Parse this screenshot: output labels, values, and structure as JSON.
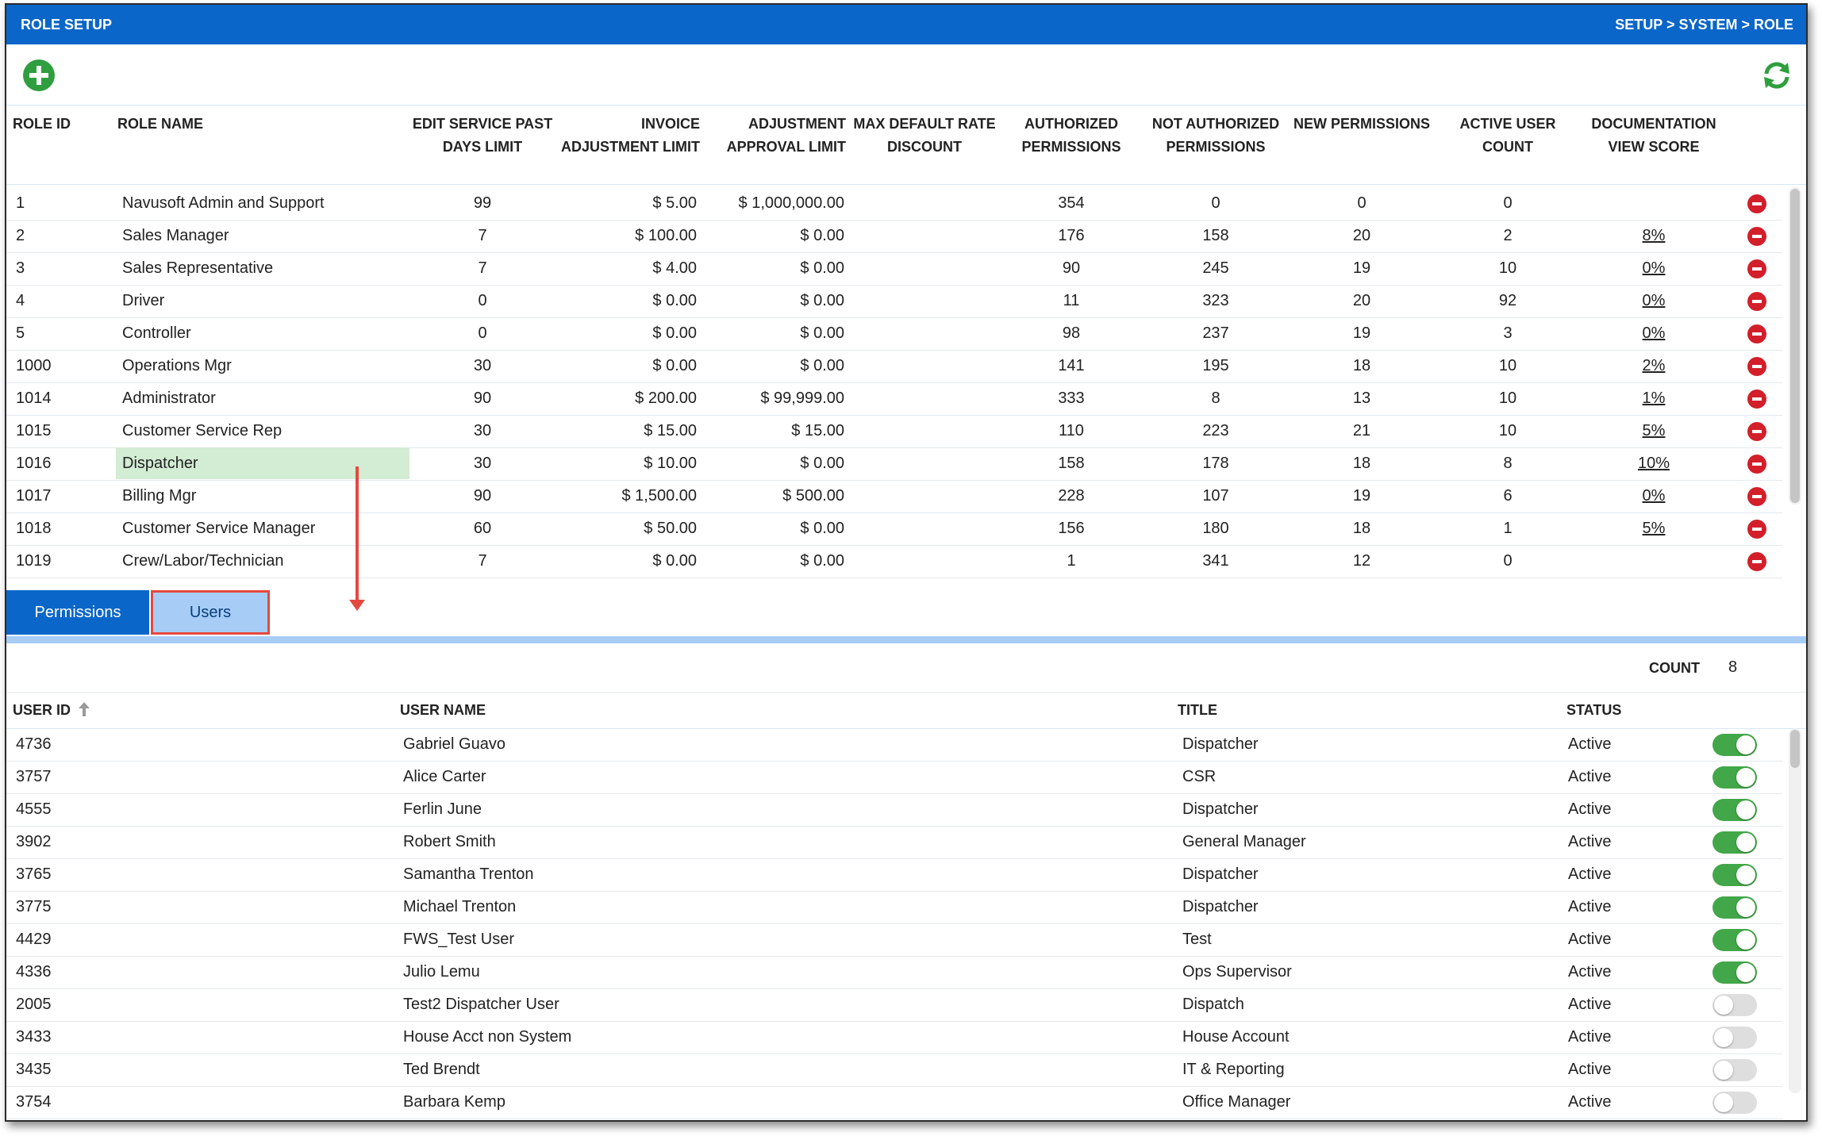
{
  "header": {
    "title": "ROLE SETUP",
    "breadcrumb": "SETUP > SYSTEM > ROLE",
    "bg_color": "#0a66c8"
  },
  "toolbar": {
    "add_icon": "plus-circle-icon",
    "add_color": "#2f9e3f",
    "refresh_icon": "refresh-icon",
    "refresh_color": "#2f9e3f"
  },
  "roles": {
    "headers": {
      "role_id": "ROLE ID",
      "role_name": "ROLE NAME",
      "edit_past_days_1": "EDIT SERVICE PAST",
      "edit_past_days_2": "DAYS LIMIT",
      "invoice_adj_1": "INVOICE",
      "invoice_adj_2": "ADJUSTMENT LIMIT",
      "adj_approval_1": "ADJUSTMENT",
      "adj_approval_2": "APPROVAL LIMIT",
      "max_rate_1": "MAX DEFAULT RATE",
      "max_rate_2": "DISCOUNT",
      "authorized_1": "AUTHORIZED",
      "authorized_2": "PERMISSIONS",
      "not_authorized_1": "NOT AUTHORIZED",
      "not_authorized_2": "PERMISSIONS",
      "new_permissions": "NEW PERMISSIONS",
      "active_user_count": "ACTIVE USER COUNT",
      "doc_score_1": "DOCUMENTATION",
      "doc_score_2": "VIEW SCORE"
    },
    "rows": [
      {
        "id": "1",
        "name": "Navusoft Admin and Support",
        "edit_days": "99",
        "invoice_limit": "$ 5.00",
        "approval_limit": "$ 1,000,000.00",
        "max_rate": "",
        "authorized": "354",
        "not_authorized": "0",
        "new_perm": "0",
        "active_users": "0",
        "doc_score": ""
      },
      {
        "id": "2",
        "name": "Sales Manager",
        "edit_days": "7",
        "invoice_limit": "$ 100.00",
        "approval_limit": "$ 0.00",
        "max_rate": "",
        "authorized": "176",
        "not_authorized": "158",
        "new_perm": "20",
        "active_users": "2",
        "doc_score": "8%"
      },
      {
        "id": "3",
        "name": "Sales Representative",
        "edit_days": "7",
        "invoice_limit": "$ 4.00",
        "approval_limit": "$ 0.00",
        "max_rate": "",
        "authorized": "90",
        "not_authorized": "245",
        "new_perm": "19",
        "active_users": "10",
        "doc_score": "0%"
      },
      {
        "id": "4",
        "name": "Driver",
        "edit_days": "0",
        "invoice_limit": "$ 0.00",
        "approval_limit": "$ 0.00",
        "max_rate": "",
        "authorized": "11",
        "not_authorized": "323",
        "new_perm": "20",
        "active_users": "92",
        "doc_score": "0%"
      },
      {
        "id": "5",
        "name": "Controller",
        "edit_days": "0",
        "invoice_limit": "$ 0.00",
        "approval_limit": "$ 0.00",
        "max_rate": "",
        "authorized": "98",
        "not_authorized": "237",
        "new_perm": "19",
        "active_users": "3",
        "doc_score": "0%"
      },
      {
        "id": "1000",
        "name": "Operations Mgr",
        "edit_days": "30",
        "invoice_limit": "$ 0.00",
        "approval_limit": "$ 0.00",
        "max_rate": "",
        "authorized": "141",
        "not_authorized": "195",
        "new_perm": "18",
        "active_users": "10",
        "doc_score": "2%"
      },
      {
        "id": "1014",
        "name": "Administrator",
        "edit_days": "90",
        "invoice_limit": "$ 200.00",
        "approval_limit": "$ 99,999.00",
        "max_rate": "",
        "authorized": "333",
        "not_authorized": "8",
        "new_perm": "13",
        "active_users": "10",
        "doc_score": "1%"
      },
      {
        "id": "1015",
        "name": "Customer Service Rep",
        "edit_days": "30",
        "invoice_limit": "$ 15.00",
        "approval_limit": "$ 15.00",
        "max_rate": "",
        "authorized": "110",
        "not_authorized": "223",
        "new_perm": "21",
        "active_users": "10",
        "doc_score": "5%"
      },
      {
        "id": "1016",
        "name": "Dispatcher",
        "edit_days": "30",
        "invoice_limit": "$ 10.00",
        "approval_limit": "$ 0.00",
        "max_rate": "",
        "authorized": "158",
        "not_authorized": "178",
        "new_perm": "18",
        "active_users": "8",
        "doc_score": "10%",
        "selected": true
      },
      {
        "id": "1017",
        "name": "Billing Mgr",
        "edit_days": "90",
        "invoice_limit": "$ 1,500.00",
        "approval_limit": "$ 500.00",
        "max_rate": "",
        "authorized": "228",
        "not_authorized": "107",
        "new_perm": "19",
        "active_users": "6",
        "doc_score": "0%"
      },
      {
        "id": "1018",
        "name": "Customer Service Manager",
        "edit_days": "60",
        "invoice_limit": "$ 50.00",
        "approval_limit": "$ 0.00",
        "max_rate": "",
        "authorized": "156",
        "not_authorized": "180",
        "new_perm": "18",
        "active_users": "1",
        "doc_score": "5%"
      },
      {
        "id": "1019",
        "name": "Crew/Labor/Technician",
        "edit_days": "7",
        "invoice_limit": "$ 0.00",
        "approval_limit": "$ 0.00",
        "max_rate": "",
        "authorized": "1",
        "not_authorized": "341",
        "new_perm": "12",
        "active_users": "0",
        "doc_score": ""
      }
    ],
    "delete_icon": "minus-circle-icon",
    "delete_color": "#d21f2a"
  },
  "tabs": [
    {
      "label": "Permissions",
      "active": false
    },
    {
      "label": "Users",
      "active": true
    }
  ],
  "users": {
    "count_label": "COUNT",
    "count": "8",
    "headers": {
      "user_id": "USER ID",
      "user_name": "USER NAME",
      "title": "TITLE",
      "status": "STATUS"
    },
    "sort_icon": "arrow-up-icon",
    "rows": [
      {
        "id": "4736",
        "name": "Gabriel Guavo",
        "title": "Dispatcher",
        "status": "Active",
        "assigned": true
      },
      {
        "id": "3757",
        "name": "Alice Carter",
        "title": "CSR",
        "status": "Active",
        "assigned": true
      },
      {
        "id": "4555",
        "name": "Ferlin June",
        "title": "Dispatcher",
        "status": "Active",
        "assigned": true
      },
      {
        "id": "3902",
        "name": "Robert Smith",
        "title": "General Manager",
        "status": "Active",
        "assigned": true
      },
      {
        "id": "3765",
        "name": "Samantha Trenton",
        "title": "Dispatcher",
        "status": "Active",
        "assigned": true
      },
      {
        "id": "3775",
        "name": "Michael Trenton",
        "title": "Dispatcher",
        "status": "Active",
        "assigned": true
      },
      {
        "id": "4429",
        "name": "FWS_Test User",
        "title": "Test",
        "status": "Active",
        "assigned": true
      },
      {
        "id": "4336",
        "name": "Julio Lemu",
        "title": "Ops Supervisor",
        "status": "Active",
        "assigned": true
      },
      {
        "id": "2005",
        "name": "Test2 Dispatcher User",
        "title": "Dispatch",
        "status": "Active",
        "assigned": false
      },
      {
        "id": "3433",
        "name": "House Acct non System",
        "title": "House Account",
        "status": "Active",
        "assigned": false
      },
      {
        "id": "3435",
        "name": "Ted Brendt",
        "title": "IT & Reporting",
        "status": "Active",
        "assigned": false
      },
      {
        "id": "3754",
        "name": "Barbara Kemp",
        "title": "Office Manager",
        "status": "Active",
        "assigned": false
      }
    ],
    "toggle_on_color": "#42a748",
    "toggle_off_color": "#dedede"
  },
  "annotation": {
    "highlight_color": "#e5493f"
  }
}
